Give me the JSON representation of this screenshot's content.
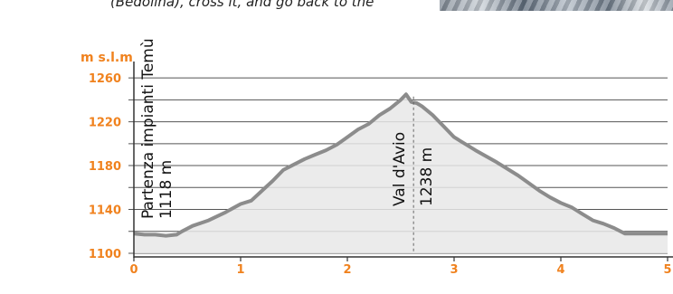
{
  "intro_text": "(Bedolina), cross it, and go back to the",
  "photo_label": "mountain landscape photo (partially visible)",
  "chart_data": {
    "type": "area",
    "ylabel": "m s.l.m",
    "xlim": [
      0,
      5
    ],
    "ylim": [
      1100,
      1270
    ],
    "x_ticks": [
      0,
      1,
      2,
      3,
      4,
      5
    ],
    "y_ticks": [
      1100,
      1140,
      1180,
      1220,
      1260
    ],
    "grid": true,
    "x": [
      0,
      0.1,
      0.2,
      0.3,
      0.4,
      0.45,
      0.55,
      0.7,
      0.85,
      1.0,
      1.1,
      1.2,
      1.3,
      1.4,
      1.5,
      1.6,
      1.7,
      1.8,
      1.9,
      2.0,
      2.1,
      2.2,
      2.3,
      2.4,
      2.5,
      2.55,
      2.6,
      2.65,
      2.7,
      2.8,
      2.9,
      3.0,
      3.2,
      3.4,
      3.6,
      3.8,
      3.9,
      4.0,
      4.1,
      4.2,
      4.3,
      4.4,
      4.5,
      4.6,
      4.7,
      4.8,
      4.9,
      5.0
    ],
    "y": [
      1118,
      1117,
      1117,
      1116,
      1117,
      1120,
      1125,
      1130,
      1137,
      1145,
      1148,
      1157,
      1166,
      1176,
      1181,
      1186,
      1190,
      1194,
      1199,
      1206,
      1213,
      1218,
      1226,
      1232,
      1240,
      1245,
      1238,
      1237,
      1234,
      1226,
      1216,
      1206,
      1194,
      1183,
      1171,
      1157,
      1151,
      1146,
      1142,
      1136,
      1130,
      1127,
      1123,
      1118,
      1118,
      1118,
      1118,
      1118
    ],
    "fill_color": "#e8e8e8",
    "line_color": "#8c8c8c",
    "axis_label_color": "#f0821e",
    "tick_label_color": "#f0821e",
    "annotations": [
      {
        "x": 0,
        "name": "Partenza impianti Temù",
        "elevation": "1118 m"
      },
      {
        "x": 2.62,
        "name": "Val d'Avio",
        "elevation": "1238 m",
        "dashed_line": true
      }
    ]
  }
}
